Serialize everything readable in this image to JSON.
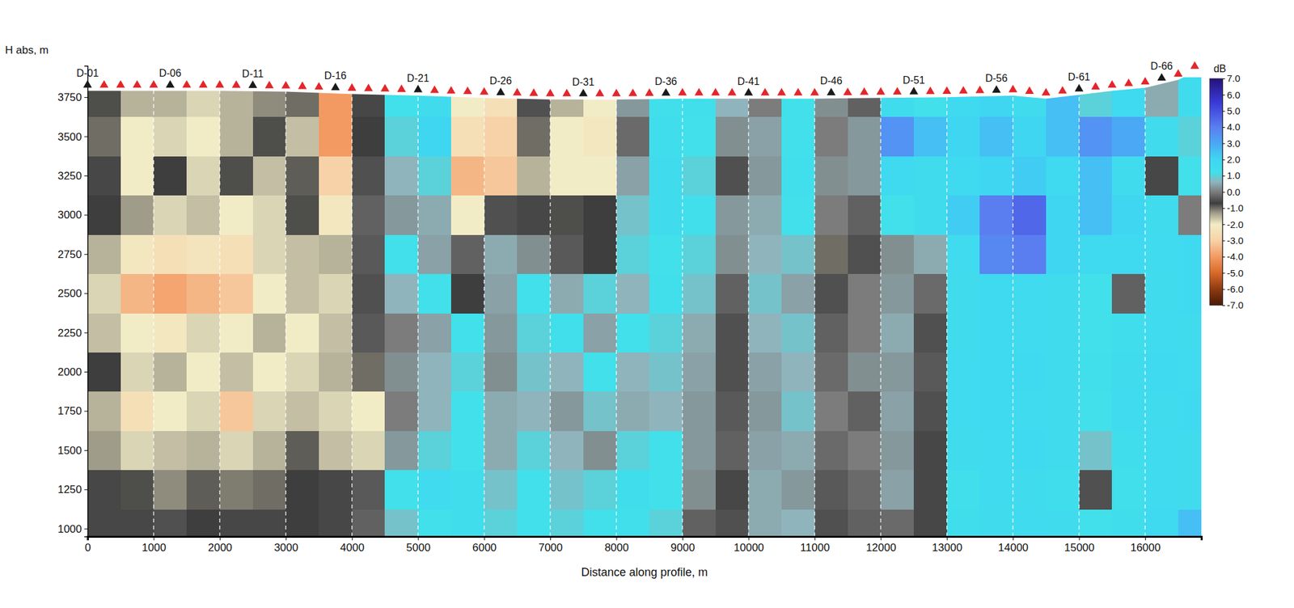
{
  "chart_data": {
    "type": "heatmap",
    "x_label": "Distance along profile, m",
    "y_label": "H abs, m",
    "xlim": [
      0,
      16850
    ],
    "ylim": [
      950,
      3950
    ],
    "xticks": [
      0,
      1000,
      2000,
      3000,
      4000,
      5000,
      6000,
      7000,
      8000,
      9000,
      10000,
      11000,
      12000,
      13000,
      14000,
      15000,
      16000
    ],
    "yticks": [
      1000,
      1250,
      1500,
      1750,
      2000,
      2250,
      2500,
      2750,
      3000,
      3250,
      3500,
      3750
    ],
    "grid": true,
    "heatmap": {
      "x": [
        250,
        750,
        1250,
        1750,
        2250,
        2750,
        3250,
        3750,
        4250,
        4750,
        5250,
        5750,
        6250,
        6750,
        7250,
        7750,
        8250,
        8750,
        9250,
        9750,
        10250,
        10750,
        11250,
        11750,
        12250,
        12750,
        13250,
        13750,
        14250,
        14750,
        15250,
        15750,
        16250,
        16750
      ],
      "y": [
        1000,
        1250,
        1500,
        1750,
        2000,
        2250,
        2500,
        2750,
        3000,
        3250,
        3500,
        3750
      ],
      "z": [
        [
          -0.6,
          -0.6,
          -0.5,
          -0.7,
          -0.6,
          -0.6,
          -0.7,
          -0.6,
          -0.3,
          0.8,
          1.2,
          1.4,
          1.0,
          1.2,
          1.0,
          1.2,
          1.3,
          1.0,
          -0.3,
          -0.5,
          0.5,
          0.6,
          -0.5,
          -0.3,
          -0.2,
          -0.6,
          1.4,
          1.5,
          1.6,
          1.5,
          1.2,
          1.4,
          1.8,
          2.5
        ],
        [
          -0.6,
          -0.8,
          -1.2,
          -0.9,
          -1.1,
          -1.0,
          -0.7,
          -0.6,
          -0.4,
          1.2,
          1.6,
          1.4,
          0.8,
          1.2,
          0.8,
          1.0,
          1.4,
          1.2,
          0.2,
          -0.6,
          0.5,
          0.3,
          -0.4,
          -0.2,
          0.4,
          -0.6,
          1.3,
          1.6,
          1.5,
          1.4,
          -0.5,
          1.3,
          1.6,
          1.5
        ],
        [
          -1.3,
          -1.8,
          -1.6,
          -1.5,
          -1.8,
          -1.5,
          -0.9,
          -1.6,
          -1.8,
          0.3,
          1.0,
          1.2,
          0.5,
          1.0,
          0.6,
          0.2,
          1.0,
          1.2,
          0.3,
          -0.3,
          0.4,
          0.5,
          -0.2,
          0.0,
          0.3,
          -0.6,
          1.5,
          1.6,
          1.8,
          1.5,
          0.8,
          1.4,
          1.6,
          1.5
        ],
        [
          -1.5,
          -2.5,
          -2.0,
          -1.8,
          -3.2,
          -1.8,
          -1.6,
          -1.8,
          -2.0,
          0.0,
          0.6,
          1.2,
          0.5,
          0.6,
          0.3,
          0.8,
          0.5,
          0.6,
          0.3,
          -0.4,
          0.3,
          0.8,
          0.0,
          -0.3,
          0.4,
          -0.5,
          1.6,
          1.7,
          1.6,
          1.5,
          1.2,
          1.6,
          1.5,
          1.7
        ],
        [
          -0.7,
          -1.8,
          -1.5,
          -2.0,
          -1.6,
          -2.0,
          -1.8,
          -1.5,
          -1.0,
          0.2,
          0.6,
          1.0,
          0.2,
          0.8,
          0.6,
          1.2,
          0.6,
          0.8,
          0.4,
          -0.5,
          0.4,
          0.6,
          -0.2,
          0.2,
          0.3,
          -0.4,
          1.6,
          1.8,
          1.7,
          1.5,
          1.3,
          1.5,
          1.7,
          1.6
        ],
        [
          -1.6,
          -2.0,
          -2.2,
          -1.8,
          -2.0,
          -1.5,
          -2.0,
          -1.6,
          -0.4,
          0.0,
          0.4,
          1.2,
          0.3,
          1.0,
          1.3,
          0.4,
          1.2,
          1.0,
          0.5,
          -0.5,
          0.6,
          0.8,
          -0.3,
          0.0,
          0.5,
          -0.5,
          1.5,
          1.8,
          1.6,
          1.5,
          1.2,
          1.4,
          1.6,
          1.5
        ],
        [
          -1.8,
          -3.5,
          -3.8,
          -3.5,
          -3.2,
          -2.0,
          -1.6,
          -1.8,
          -0.5,
          0.6,
          1.2,
          -0.7,
          0.4,
          1.2,
          0.5,
          1.0,
          0.6,
          1.3,
          0.8,
          -0.3,
          0.8,
          0.4,
          -0.5,
          0.0,
          0.3,
          -0.2,
          1.5,
          1.8,
          1.6,
          1.5,
          1.2,
          -0.3,
          1.5,
          1.8
        ],
        [
          -1.5,
          -2.2,
          -2.5,
          -2.3,
          -2.5,
          -1.8,
          -1.6,
          -1.5,
          -0.4,
          1.2,
          0.4,
          -0.3,
          0.5,
          0.2,
          -0.4,
          -0.7,
          1.0,
          1.2,
          1.0,
          0.2,
          0.6,
          0.8,
          -1.0,
          -0.5,
          0.2,
          0.5,
          1.6,
          3.8,
          4.0,
          2.0,
          1.8,
          1.8,
          1.6,
          1.8
        ],
        [
          -0.7,
          -1.3,
          -1.8,
          -1.6,
          -2.0,
          -1.8,
          -0.8,
          -2.2,
          -0.3,
          0.3,
          0.5,
          -2.0,
          -0.5,
          -0.6,
          -0.8,
          -0.7,
          0.8,
          1.5,
          1.3,
          0.3,
          0.5,
          1.2,
          0.0,
          -0.3,
          1.2,
          1.5,
          2.2,
          4.0,
          4.5,
          2.0,
          2.5,
          2.0,
          1.5,
          0.0
        ],
        [
          -0.6,
          -2.0,
          -0.7,
          -1.8,
          -0.8,
          -1.6,
          -0.9,
          -3.0,
          -0.5,
          0.6,
          1.0,
          -3.5,
          -3.2,
          -1.5,
          -2.0,
          -2.0,
          0.4,
          1.5,
          1.0,
          -0.5,
          0.3,
          1.3,
          0.2,
          0.3,
          1.8,
          1.5,
          1.8,
          2.0,
          2.2,
          1.8,
          2.5,
          1.5,
          -0.6,
          1.2
        ],
        [
          -1.0,
          -2.0,
          -1.8,
          -2.0,
          -1.5,
          -0.8,
          -1.6,
          -4.0,
          -0.7,
          1.0,
          2.0,
          -2.5,
          -3.0,
          -1.0,
          -2.0,
          -2.2,
          -0.2,
          1.4,
          1.2,
          0.2,
          0.4,
          1.2,
          0.0,
          0.3,
          3.5,
          2.5,
          2.0,
          2.5,
          2.0,
          2.5,
          3.5,
          3.0,
          1.5,
          1.0
        ],
        [
          -0.8,
          -1.5,
          -1.5,
          -1.8,
          -1.5,
          -1.2,
          -1.0,
          -4.0,
          -0.6,
          1.2,
          1.5,
          -2.0,
          -2.5,
          -0.5,
          -1.5,
          -2.0,
          0.3,
          1.3,
          1.3,
          0.6,
          0.0,
          1.2,
          0.2,
          -0.3,
          1.5,
          1.2,
          1.8,
          2.0,
          1.5,
          2.5,
          1.0,
          1.8,
          0.5,
          1.5
        ]
      ]
    },
    "colorbar": {
      "label": "dB",
      "range": [
        -7,
        7
      ],
      "ticks": [
        {
          "value": 7,
          "label": "7.0"
        },
        {
          "value": 6,
          "label": "6.0"
        },
        {
          "value": 5,
          "label": "5.0"
        },
        {
          "value": 4,
          "label": "4.0"
        },
        {
          "value": 3,
          "label": "3.0"
        },
        {
          "value": 2,
          "label": "2.0"
        },
        {
          "value": 1,
          "label": "1.0"
        },
        {
          "value": 0,
          "label": "0.0"
        },
        {
          "value": -1,
          "label": "-1.0"
        },
        {
          "value": -2,
          "label": "-2.0"
        },
        {
          "value": -3,
          "label": "-3.0"
        },
        {
          "value": -4,
          "label": "-4.0"
        },
        {
          "value": -5,
          "label": "-5.0"
        },
        {
          "value": -6,
          "label": "-6.0"
        },
        {
          "value": -7,
          "label": "-7.0"
        }
      ]
    },
    "surface": {
      "x": [
        0,
        1000,
        2000,
        3000,
        4000,
        5000,
        6000,
        7000,
        8000,
        9000,
        10000,
        11000,
        12000,
        13000,
        14000,
        14500,
        15000,
        15500,
        16000,
        16500,
        16850
      ],
      "h": [
        3790,
        3790,
        3790,
        3785,
        3770,
        3760,
        3745,
        3735,
        3735,
        3740,
        3740,
        3740,
        3745,
        3750,
        3760,
        3740,
        3765,
        3790,
        3810,
        3860,
        3930
      ]
    },
    "stations": {
      "x": [
        0,
        250,
        500,
        750,
        1000,
        1250,
        1500,
        1750,
        2000,
        2250,
        2500,
        2750,
        3000,
        3250,
        3500,
        3750,
        4000,
        4250,
        4500,
        4750,
        5000,
        5250,
        5500,
        5750,
        6000,
        6250,
        6500,
        6750,
        7000,
        7250,
        7500,
        7750,
        8000,
        8250,
        8500,
        8750,
        9000,
        9250,
        9500,
        9750,
        10000,
        10250,
        10500,
        10750,
        11000,
        11250,
        11500,
        11750,
        12000,
        12250,
        12500,
        12750,
        13000,
        13250,
        13500,
        13750,
        14000,
        14250,
        14500,
        14750,
        15000,
        15250,
        15500,
        15750,
        16000,
        16250,
        16500,
        16750
      ],
      "labels": [
        "D-01",
        null,
        null,
        null,
        null,
        "D-06",
        null,
        null,
        null,
        null,
        "D-11",
        null,
        null,
        null,
        null,
        "D-16",
        null,
        null,
        null,
        null,
        "D-21",
        null,
        null,
        null,
        null,
        "D-26",
        null,
        null,
        null,
        null,
        "D-31",
        null,
        null,
        null,
        null,
        "D-36",
        null,
        null,
        null,
        null,
        "D-41",
        null,
        null,
        null,
        null,
        "D-46",
        null,
        null,
        null,
        null,
        "D-51",
        null,
        null,
        null,
        null,
        "D-56",
        null,
        null,
        null,
        null,
        "D-61",
        null,
        null,
        null,
        null,
        "D-66",
        null,
        null
      ]
    }
  }
}
